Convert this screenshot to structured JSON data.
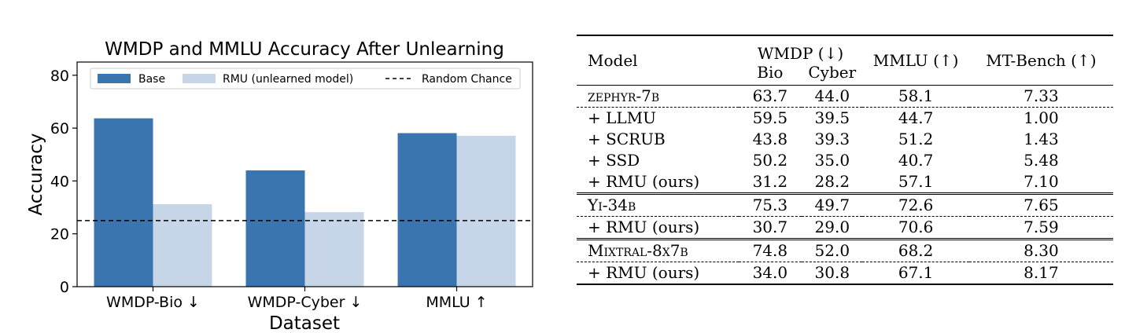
{
  "chart_data": {
    "type": "bar",
    "title": "WMDP and MMLU Accuracy After Unlearning",
    "xlabel": "Dataset",
    "ylabel": "Accuracy",
    "categories": [
      "WMDP-Bio ↓",
      "WMDP-Cyber ↓",
      "MMLU ↑"
    ],
    "series": [
      {
        "name": "Base",
        "values": [
          63.7,
          44.0,
          58.1
        ],
        "color": "#3b75af"
      },
      {
        "name": "RMU (unlearned model)",
        "values": [
          31.2,
          28.2,
          57.1
        ],
        "color": "#c6d6e8"
      }
    ],
    "reference_line": {
      "name": "Random Chance",
      "value": 25,
      "style": "dashed",
      "color": "#000000"
    },
    "ylim": [
      0,
      85
    ],
    "yticks": [
      0,
      20,
      40,
      60,
      80
    ],
    "grid": false,
    "legend": "top"
  },
  "table": {
    "headers": {
      "model": "Model",
      "wmdp": "WMDP (↓)",
      "bio": "Bio",
      "cyber": "Cyber",
      "mmlu": "MMLU (↑)",
      "mtbench": "MT-Bench (↑)"
    },
    "groups": [
      {
        "base": {
          "model": "zephyr-7b",
          "bio": "63.7",
          "cyber": "44.0",
          "mmlu": "58.1",
          "mt": "7.33"
        },
        "methods": [
          {
            "model": "+ LLMU",
            "bio": "59.5",
            "cyber": "39.5",
            "mmlu": "44.7",
            "mt": "1.00"
          },
          {
            "model": "+ SCRUB",
            "bio": "43.8",
            "cyber": "39.3",
            "mmlu": "51.2",
            "mt": "1.43"
          },
          {
            "model": "+ SSD",
            "bio": "50.2",
            "cyber": "35.0",
            "mmlu": "40.7",
            "mt": "5.48"
          },
          {
            "model": "+ RMU (ours)",
            "bio": "31.2",
            "cyber": "28.2",
            "mmlu": "57.1",
            "mt": "7.10"
          }
        ]
      },
      {
        "base": {
          "model": "Yi-34b",
          "bio": "75.3",
          "cyber": "49.7",
          "mmlu": "72.6",
          "mt": "7.65"
        },
        "methods": [
          {
            "model": "+ RMU (ours)",
            "bio": "30.7",
            "cyber": "29.0",
            "mmlu": "70.6",
            "mt": "7.59"
          }
        ]
      },
      {
        "base": {
          "model": "Mixtral-8x7b",
          "bio": "74.8",
          "cyber": "52.0",
          "mmlu": "68.2",
          "mt": "8.30"
        },
        "methods": [
          {
            "model": "+ RMU (ours)",
            "bio": "34.0",
            "cyber": "30.8",
            "mmlu": "67.1",
            "mt": "8.17"
          }
        ]
      }
    ]
  }
}
